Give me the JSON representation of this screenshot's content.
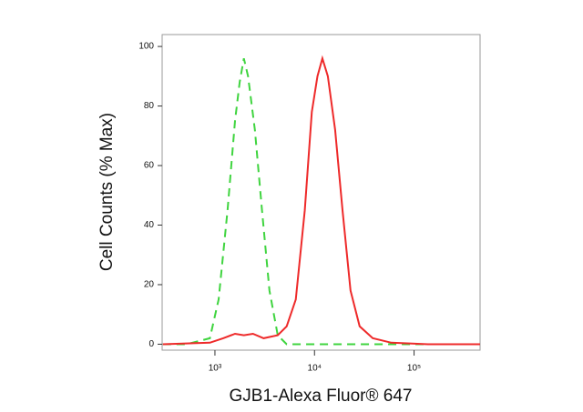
{
  "chart_data": {
    "type": "line",
    "xlabel": "GJB1-Alexa Fluor® 647",
    "ylabel": "Cell Counts (% Max)",
    "xscale": "log",
    "xlim": [
      295,
      460000
    ],
    "ylim": [
      -2,
      104
    ],
    "xticks": [
      {
        "value": 1000,
        "label": "10³"
      },
      {
        "value": 10000,
        "label": "10⁴"
      },
      {
        "value": 100000,
        "label": "10⁵"
      }
    ],
    "yticks": [
      0,
      20,
      40,
      60,
      80,
      100
    ],
    "series": [
      {
        "color": "#3fd43f",
        "dash": true,
        "x": [
          300,
          520,
          890,
          1090,
          1340,
          1590,
          1770,
          1950,
          2150,
          2520,
          2970,
          3530,
          4270,
          5250,
          460000
        ],
        "values": [
          0,
          0,
          2,
          15,
          45,
          75,
          88,
          96,
          90,
          72,
          45,
          18,
          3,
          0,
          0
        ]
      },
      {
        "color": "#ee2a2a",
        "dash": false,
        "x": [
          300,
          890,
          1210,
          1590,
          1950,
          2410,
          3080,
          4270,
          5250,
          6480,
          7990,
          9400,
          10700,
          12000,
          13600,
          16100,
          19100,
          23000,
          28400,
          38500,
          59000,
          138000,
          460000
        ],
        "values": [
          0,
          0.5,
          2,
          3.5,
          3,
          3.5,
          2,
          3,
          6,
          15,
          45,
          78,
          90,
          96,
          90,
          72,
          45,
          18,
          6,
          2,
          0.5,
          0,
          0
        ]
      }
    ]
  }
}
